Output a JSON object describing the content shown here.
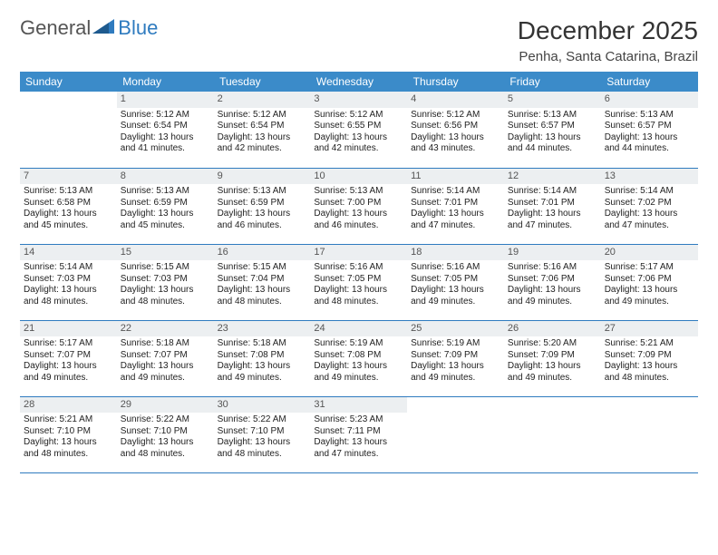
{
  "brand": {
    "part1": "General",
    "part2": "Blue"
  },
  "title": "December 2025",
  "location": "Penha, Santa Catarina, Brazil",
  "colors": {
    "header_bg": "#3b8bc9",
    "divider": "#2f7bbf",
    "daynum_bg": "#eceff1",
    "brand_blue": "#2f7bbf"
  },
  "typography": {
    "title_fontsize": 28,
    "location_fontsize": 15,
    "weekday_fontsize": 12,
    "daynum_fontsize": 11,
    "body_fontsize": 10
  },
  "weekdays": [
    "Sunday",
    "Monday",
    "Tuesday",
    "Wednesday",
    "Thursday",
    "Friday",
    "Saturday"
  ],
  "weeks": [
    [
      null,
      {
        "n": "1",
        "sr": "5:12 AM",
        "ss": "6:54 PM",
        "dl": "13 hours and 41 minutes."
      },
      {
        "n": "2",
        "sr": "5:12 AM",
        "ss": "6:54 PM",
        "dl": "13 hours and 42 minutes."
      },
      {
        "n": "3",
        "sr": "5:12 AM",
        "ss": "6:55 PM",
        "dl": "13 hours and 42 minutes."
      },
      {
        "n": "4",
        "sr": "5:12 AM",
        "ss": "6:56 PM",
        "dl": "13 hours and 43 minutes."
      },
      {
        "n": "5",
        "sr": "5:13 AM",
        "ss": "6:57 PM",
        "dl": "13 hours and 44 minutes."
      },
      {
        "n": "6",
        "sr": "5:13 AM",
        "ss": "6:57 PM",
        "dl": "13 hours and 44 minutes."
      }
    ],
    [
      {
        "n": "7",
        "sr": "5:13 AM",
        "ss": "6:58 PM",
        "dl": "13 hours and 45 minutes."
      },
      {
        "n": "8",
        "sr": "5:13 AM",
        "ss": "6:59 PM",
        "dl": "13 hours and 45 minutes."
      },
      {
        "n": "9",
        "sr": "5:13 AM",
        "ss": "6:59 PM",
        "dl": "13 hours and 46 minutes."
      },
      {
        "n": "10",
        "sr": "5:13 AM",
        "ss": "7:00 PM",
        "dl": "13 hours and 46 minutes."
      },
      {
        "n": "11",
        "sr": "5:14 AM",
        "ss": "7:01 PM",
        "dl": "13 hours and 47 minutes."
      },
      {
        "n": "12",
        "sr": "5:14 AM",
        "ss": "7:01 PM",
        "dl": "13 hours and 47 minutes."
      },
      {
        "n": "13",
        "sr": "5:14 AM",
        "ss": "7:02 PM",
        "dl": "13 hours and 47 minutes."
      }
    ],
    [
      {
        "n": "14",
        "sr": "5:14 AM",
        "ss": "7:03 PM",
        "dl": "13 hours and 48 minutes."
      },
      {
        "n": "15",
        "sr": "5:15 AM",
        "ss": "7:03 PM",
        "dl": "13 hours and 48 minutes."
      },
      {
        "n": "16",
        "sr": "5:15 AM",
        "ss": "7:04 PM",
        "dl": "13 hours and 48 minutes."
      },
      {
        "n": "17",
        "sr": "5:16 AM",
        "ss": "7:05 PM",
        "dl": "13 hours and 48 minutes."
      },
      {
        "n": "18",
        "sr": "5:16 AM",
        "ss": "7:05 PM",
        "dl": "13 hours and 49 minutes."
      },
      {
        "n": "19",
        "sr": "5:16 AM",
        "ss": "7:06 PM",
        "dl": "13 hours and 49 minutes."
      },
      {
        "n": "20",
        "sr": "5:17 AM",
        "ss": "7:06 PM",
        "dl": "13 hours and 49 minutes."
      }
    ],
    [
      {
        "n": "21",
        "sr": "5:17 AM",
        "ss": "7:07 PM",
        "dl": "13 hours and 49 minutes."
      },
      {
        "n": "22",
        "sr": "5:18 AM",
        "ss": "7:07 PM",
        "dl": "13 hours and 49 minutes."
      },
      {
        "n": "23",
        "sr": "5:18 AM",
        "ss": "7:08 PM",
        "dl": "13 hours and 49 minutes."
      },
      {
        "n": "24",
        "sr": "5:19 AM",
        "ss": "7:08 PM",
        "dl": "13 hours and 49 minutes."
      },
      {
        "n": "25",
        "sr": "5:19 AM",
        "ss": "7:09 PM",
        "dl": "13 hours and 49 minutes."
      },
      {
        "n": "26",
        "sr": "5:20 AM",
        "ss": "7:09 PM",
        "dl": "13 hours and 49 minutes."
      },
      {
        "n": "27",
        "sr": "5:21 AM",
        "ss": "7:09 PM",
        "dl": "13 hours and 48 minutes."
      }
    ],
    [
      {
        "n": "28",
        "sr": "5:21 AM",
        "ss": "7:10 PM",
        "dl": "13 hours and 48 minutes."
      },
      {
        "n": "29",
        "sr": "5:22 AM",
        "ss": "7:10 PM",
        "dl": "13 hours and 48 minutes."
      },
      {
        "n": "30",
        "sr": "5:22 AM",
        "ss": "7:10 PM",
        "dl": "13 hours and 48 minutes."
      },
      {
        "n": "31",
        "sr": "5:23 AM",
        "ss": "7:11 PM",
        "dl": "13 hours and 47 minutes."
      },
      null,
      null,
      null
    ]
  ],
  "labels": {
    "sunrise": "Sunrise:",
    "sunset": "Sunset:",
    "daylight": "Daylight:"
  }
}
